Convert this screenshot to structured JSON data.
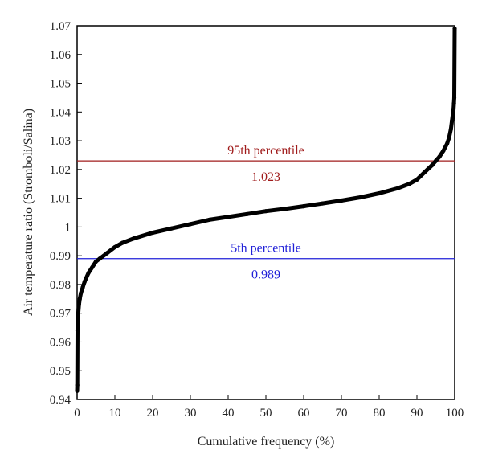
{
  "chart_data": {
    "type": "scatter",
    "title": "",
    "xlabel": "Cumulative frequency (%)",
    "ylabel": "Air temperature ratio (Stromboli/Salina)",
    "xlim": [
      0,
      100
    ],
    "ylim": [
      0.94,
      1.07
    ],
    "x_ticks": [
      0,
      10,
      20,
      30,
      40,
      50,
      60,
      70,
      80,
      90,
      100
    ],
    "x_tick_labels": [
      "0",
      "10",
      "20",
      "30",
      "40",
      "50",
      "60",
      "70",
      "80",
      "90",
      "100"
    ],
    "y_ticks": [
      0.94,
      0.95,
      0.96,
      0.97,
      0.98,
      0.99,
      1.0,
      1.01,
      1.02,
      1.03,
      1.04,
      1.05,
      1.06,
      1.07
    ],
    "y_tick_labels": [
      "0.94",
      "0.95",
      "0.96",
      "0.97",
      "0.98",
      "0.99",
      "1",
      "1.01",
      "1.02",
      "1.03",
      "1.04",
      "1.05",
      "1.06",
      "1.07"
    ],
    "grid": false,
    "series": [
      {
        "color": "#000000",
        "x": [
          0,
          0.05,
          0.1,
          0.2,
          0.3,
          0.5,
          0.7,
          1,
          1.5,
          2,
          3,
          4,
          5,
          6,
          8,
          10,
          12,
          15,
          20,
          25,
          30,
          35,
          40,
          45,
          50,
          55,
          60,
          65,
          70,
          75,
          80,
          85,
          88,
          90,
          92,
          94,
          95,
          96,
          97,
          98,
          98.5,
          99,
          99.3,
          99.5,
          99.7,
          99.8,
          99.9,
          100
        ],
        "y": [
          0.943,
          0.945,
          0.964,
          0.967,
          0.97,
          0.973,
          0.975,
          0.977,
          0.979,
          0.981,
          0.984,
          0.986,
          0.988,
          0.989,
          0.991,
          0.993,
          0.9945,
          0.996,
          0.998,
          0.9995,
          1.001,
          1.0025,
          1.0035,
          1.0045,
          1.0055,
          1.0063,
          1.0072,
          1.0082,
          1.0092,
          1.0103,
          1.0117,
          1.0135,
          1.015,
          1.0165,
          1.019,
          1.0215,
          1.023,
          1.0245,
          1.0265,
          1.029,
          1.031,
          1.034,
          1.037,
          1.039,
          1.041,
          1.043,
          1.045,
          1.069
        ]
      }
    ],
    "reference_lines": [
      {
        "name": "95th percentile",
        "value_label": "1.023",
        "y": 1.023,
        "color": "#a01c1c"
      },
      {
        "name": "5th percentile",
        "value_label": "0.989",
        "y": 0.989,
        "color": "#2020d8"
      }
    ]
  }
}
